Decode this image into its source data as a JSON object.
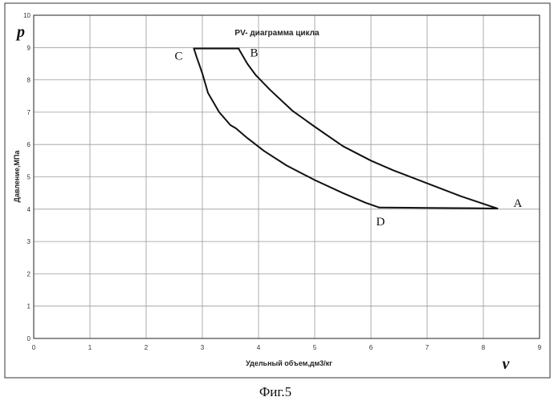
{
  "figure_caption": "Фиг.5",
  "chart_data": {
    "type": "line",
    "title": "PV- диаграмма цикла",
    "xlabel": "Удельный объем,дм3/кг",
    "ylabel": "Давление,МПа",
    "x_symbol": "v",
    "y_symbol": "p",
    "xlim": [
      0,
      9
    ],
    "ylim": [
      0,
      10
    ],
    "x_ticks": [
      "0",
      "1",
      "2",
      "3",
      "4",
      "5",
      "6",
      "7",
      "8",
      "9"
    ],
    "y_ticks": [
      "0",
      "1",
      "2",
      "3",
      "4",
      "5",
      "6",
      "7",
      "8",
      "9",
      "10"
    ],
    "grid": true,
    "series": [
      {
        "x": [
          8.25,
          7.6,
          7.0,
          6.4,
          6.0,
          5.5,
          5.0,
          4.6,
          4.2,
          3.95,
          3.8,
          3.65
        ],
        "y": [
          4.02,
          4.4,
          4.8,
          5.2,
          5.5,
          5.95,
          6.55,
          7.05,
          7.7,
          8.15,
          8.5,
          8.95
        ]
      },
      {
        "x": [
          3.65,
          3.4,
          3.1,
          2.85
        ],
        "y": [
          8.97,
          8.97,
          8.97,
          8.97
        ]
      },
      {
        "x": [
          2.85,
          2.9,
          3.0,
          3.1,
          3.3,
          3.5,
          3.6,
          3.8,
          4.1,
          4.5,
          5.0,
          5.5,
          5.9,
          6.15
        ],
        "y": [
          8.97,
          8.7,
          8.2,
          7.6,
          7.0,
          6.6,
          6.5,
          6.2,
          5.8,
          5.35,
          4.9,
          4.5,
          4.2,
          4.05
        ]
      },
      {
        "x": [
          6.15,
          7.0,
          7.8,
          8.25
        ],
        "y": [
          4.05,
          4.04,
          4.03,
          4.02
        ]
      }
    ],
    "point_labels": [
      {
        "text": "A",
        "x": 8.25,
        "y": 4.02
      },
      {
        "text": "B",
        "x": 3.65,
        "y": 8.97
      },
      {
        "text": "C",
        "x": 2.85,
        "y": 8.97
      },
      {
        "text": "D",
        "x": 6.15,
        "y": 4.05
      }
    ],
    "line_color": "#111111",
    "grid_color": "#9a9a9a"
  }
}
